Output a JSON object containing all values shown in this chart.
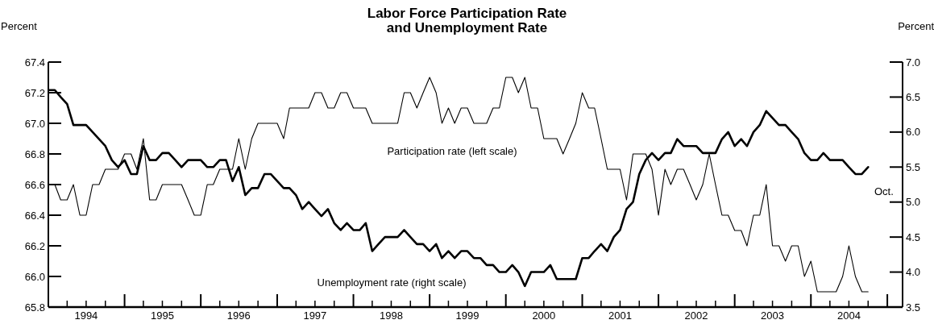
{
  "chart_data": {
    "type": "line",
    "title": "Labor Force Participation Rate\nand Unemployment Rate",
    "ylabel": "Percent",
    "y2label": "Percent",
    "x": [
      "1994-01",
      "1994-02",
      "1994-03",
      "1994-04",
      "1994-05",
      "1994-06",
      "1994-07",
      "1994-08",
      "1994-09",
      "1994-10",
      "1994-11",
      "1994-12",
      "1995-01",
      "1995-02",
      "1995-03",
      "1995-04",
      "1995-05",
      "1995-06",
      "1995-07",
      "1995-08",
      "1995-09",
      "1995-10",
      "1995-11",
      "1995-12",
      "1996-01",
      "1996-02",
      "1996-03",
      "1996-04",
      "1996-05",
      "1996-06",
      "1996-07",
      "1996-08",
      "1996-09",
      "1996-10",
      "1996-11",
      "1996-12",
      "1997-01",
      "1997-02",
      "1997-03",
      "1997-04",
      "1997-05",
      "1997-06",
      "1997-07",
      "1997-08",
      "1997-09",
      "1997-10",
      "1997-11",
      "1997-12",
      "1998-01",
      "1998-02",
      "1998-03",
      "1998-04",
      "1998-05",
      "1998-06",
      "1998-07",
      "1998-08",
      "1998-09",
      "1998-10",
      "1998-11",
      "1998-12",
      "1999-01",
      "1999-02",
      "1999-03",
      "1999-04",
      "1999-05",
      "1999-06",
      "1999-07",
      "1999-08",
      "1999-09",
      "1999-10",
      "1999-11",
      "1999-12",
      "2000-01",
      "2000-02",
      "2000-03",
      "2000-04",
      "2000-05",
      "2000-06",
      "2000-07",
      "2000-08",
      "2000-09",
      "2000-10",
      "2000-11",
      "2000-12",
      "2001-01",
      "2001-02",
      "2001-03",
      "2001-04",
      "2001-05",
      "2001-06",
      "2001-07",
      "2001-08",
      "2001-09",
      "2001-10",
      "2001-11",
      "2001-12",
      "2002-01",
      "2002-02",
      "2002-03",
      "2002-04",
      "2002-05",
      "2002-06",
      "2002-07",
      "2002-08",
      "2002-09",
      "2002-10",
      "2002-11",
      "2002-12",
      "2003-01",
      "2003-02",
      "2003-03",
      "2003-04",
      "2003-05",
      "2003-06",
      "2003-07",
      "2003-08",
      "2003-09",
      "2003-10",
      "2003-11",
      "2003-12",
      "2004-01",
      "2004-02",
      "2004-03",
      "2004-04",
      "2004-05",
      "2004-06",
      "2004-07",
      "2004-08",
      "2004-09",
      "2004-10"
    ],
    "series": [
      {
        "name": "Participation rate (left scale)",
        "color": "#000000",
        "values": [
          66.6,
          66.6,
          66.5,
          66.5,
          66.6,
          66.4,
          66.4,
          66.6,
          66.6,
          66.7,
          66.7,
          66.7,
          66.8,
          66.8,
          66.7,
          66.9,
          66.5,
          66.5,
          66.6,
          66.6,
          66.6,
          66.6,
          66.5,
          66.4,
          66.4,
          66.6,
          66.6,
          66.7,
          66.7,
          66.7,
          66.9,
          66.7,
          66.9,
          67.0,
          67.0,
          67.0,
          67.0,
          66.9,
          67.1,
          67.1,
          67.1,
          67.1,
          67.2,
          67.2,
          67.1,
          67.1,
          67.2,
          67.2,
          67.1,
          67.1,
          67.1,
          67.0,
          67.0,
          67.0,
          67.0,
          67.0,
          67.2,
          67.2,
          67.1,
          67.2,
          67.3,
          67.2,
          67.0,
          67.1,
          67.0,
          67.1,
          67.1,
          67.0,
          67.0,
          67.0,
          67.1,
          67.1,
          67.3,
          67.3,
          67.2,
          67.3,
          67.1,
          67.1,
          66.9,
          66.9,
          66.9,
          66.8,
          66.9,
          67.0,
          67.2,
          67.1,
          67.1,
          66.9,
          66.7,
          66.7,
          66.7,
          66.5,
          66.8,
          66.8,
          66.8,
          66.7,
          66.4,
          66.7,
          66.6,
          66.7,
          66.7,
          66.6,
          66.5,
          66.6,
          66.8,
          66.6,
          66.4,
          66.4,
          66.3,
          66.3,
          66.2,
          66.4,
          66.4,
          66.6,
          66.2,
          66.2,
          66.1,
          66.2,
          66.2,
          66.0,
          66.1,
          65.9,
          65.9,
          65.9,
          65.9,
          66.0,
          66.2,
          66.0,
          65.9,
          65.9
        ]
      },
      {
        "name": "Unemployment rate (right scale)",
        "color": "#000000",
        "axis": "y2",
        "values": [
          6.6,
          6.6,
          6.5,
          6.4,
          6.1,
          6.1,
          6.1,
          6.0,
          5.9,
          5.8,
          5.6,
          5.5,
          5.6,
          5.4,
          5.4,
          5.8,
          5.6,
          5.6,
          5.7,
          5.7,
          5.6,
          5.5,
          5.6,
          5.6,
          5.6,
          5.5,
          5.5,
          5.6,
          5.6,
          5.3,
          5.5,
          5.1,
          5.2,
          5.2,
          5.4,
          5.4,
          5.3,
          5.2,
          5.2,
          5.1,
          4.9,
          5.0,
          4.9,
          4.8,
          4.9,
          4.7,
          4.6,
          4.7,
          4.6,
          4.6,
          4.7,
          4.3,
          4.4,
          4.5,
          4.5,
          4.5,
          4.6,
          4.5,
          4.4,
          4.4,
          4.3,
          4.4,
          4.2,
          4.3,
          4.2,
          4.3,
          4.3,
          4.2,
          4.2,
          4.1,
          4.1,
          4.0,
          4.0,
          4.1,
          4.0,
          3.8,
          4.0,
          4.0,
          4.0,
          4.1,
          3.9,
          3.9,
          3.9,
          3.9,
          4.2,
          4.2,
          4.3,
          4.4,
          4.3,
          4.5,
          4.6,
          4.9,
          5.0,
          5.4,
          5.6,
          5.7,
          5.6,
          5.7,
          5.7,
          5.9,
          5.8,
          5.8,
          5.8,
          5.7,
          5.7,
          5.7,
          5.9,
          6.0,
          5.8,
          5.9,
          5.8,
          6.0,
          6.1,
          6.3,
          6.2,
          6.1,
          6.1,
          6.0,
          5.9,
          5.7,
          5.6,
          5.6,
          5.7,
          5.6,
          5.6,
          5.6,
          5.5,
          5.4,
          5.4,
          5.5
        ]
      }
    ],
    "xlim": [
      "1994-01-01",
      "2005-03-15"
    ],
    "xticks": [
      {
        "value": "1994-04-01",
        "label": null
      },
      {
        "value": "1994-07-01",
        "label": "1994"
      },
      {
        "value": "1994-10-01",
        "label": null
      },
      {
        "value": "1995-01-01",
        "label": null
      },
      {
        "value": "1995-04-01",
        "label": null
      },
      {
        "value": "1995-07-01",
        "label": "1995"
      },
      {
        "value": "1995-10-01",
        "label": null
      },
      {
        "value": "1996-01-01",
        "label": null
      },
      {
        "value": "1996-04-01",
        "label": null
      },
      {
        "value": "1996-07-01",
        "label": "1996"
      },
      {
        "value": "1996-10-01",
        "label": null
      },
      {
        "value": "1997-01-01",
        "label": null
      },
      {
        "value": "1997-04-01",
        "label": null
      },
      {
        "value": "1997-07-01",
        "label": "1997"
      },
      {
        "value": "1997-10-01",
        "label": null
      },
      {
        "value": "1998-01-01",
        "label": null
      },
      {
        "value": "1998-04-01",
        "label": null
      },
      {
        "value": "1998-07-01",
        "label": "1998"
      },
      {
        "value": "1998-10-01",
        "label": null
      },
      {
        "value": "1999-01-01",
        "label": null
      },
      {
        "value": "1999-04-01",
        "label": null
      },
      {
        "value": "1999-07-01",
        "label": "1999"
      },
      {
        "value": "1999-10-01",
        "label": null
      },
      {
        "value": "2000-01-01",
        "label": null
      },
      {
        "value": "2000-04-01",
        "label": null
      },
      {
        "value": "2000-07-01",
        "label": "2000"
      },
      {
        "value": "2000-10-01",
        "label": null
      },
      {
        "value": "2001-01-01",
        "label": null
      },
      {
        "value": "2001-04-01",
        "label": null
      },
      {
        "value": "2001-07-01",
        "label": "2001"
      },
      {
        "value": "2001-10-01",
        "label": null
      },
      {
        "value": "2002-01-01",
        "label": null
      },
      {
        "value": "2002-04-01",
        "label": null
      },
      {
        "value": "2002-07-01",
        "label": "2002"
      },
      {
        "value": "2002-10-01",
        "label": null
      },
      {
        "value": "2003-01-01",
        "label": null
      },
      {
        "value": "2003-04-01",
        "label": null
      },
      {
        "value": "2003-07-01",
        "label": "2003"
      },
      {
        "value": "2003-10-01",
        "label": null
      },
      {
        "value": "2004-01-01",
        "label": null
      },
      {
        "value": "2004-04-01",
        "label": null
      },
      {
        "value": "2004-07-01",
        "label": "2004"
      },
      {
        "value": "2004-10-01",
        "label": null
      },
      {
        "value": "2005-01-01",
        "label": null
      }
    ],
    "ylim": [
      65.8,
      67.4
    ],
    "yticks": [
      65.8,
      {
        "value": 66,
        "label": "66.0"
      },
      66.2,
      66.4,
      66.6,
      66.8,
      {
        "value": 67,
        "label": "67.0"
      },
      67.2,
      67.4
    ],
    "y2lim": [
      3.5,
      7.0
    ],
    "y2ticks": [
      3.5,
      {
        "value": 4,
        "label": "4.0"
      },
      4.5,
      {
        "value": 5,
        "label": "5.0"
      },
      5.5,
      {
        "value": 6,
        "label": "6.0"
      },
      6.5,
      {
        "value": 7,
        "label": "7.0"
      }
    ],
    "annotations": [
      "Oct."
    ],
    "grid": false,
    "marker": "none",
    "line_style": "solid"
  }
}
